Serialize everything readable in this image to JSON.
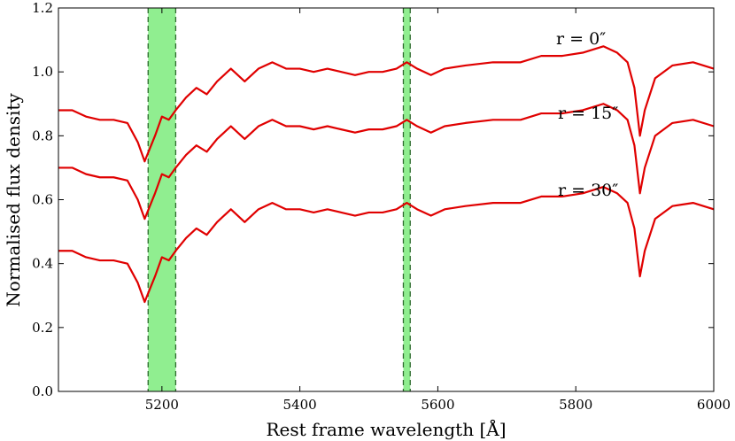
{
  "chart_data": {
    "type": "line",
    "xlabel": "Rest frame wavelength [Å]",
    "ylabel": "Normalised flux density",
    "xlim": [
      5050,
      6000
    ],
    "ylim": [
      0.0,
      1.2
    ],
    "xticks": [
      "5200",
      "5400",
      "5600",
      "5800",
      "6000"
    ],
    "yticks": [
      "0.0",
      "0.2",
      "0.4",
      "0.6",
      "0.8",
      "1.0",
      "1.2"
    ],
    "grid": false,
    "colors": {
      "observed": "#000000",
      "model": "#e00000",
      "band_fill": "#90ee90",
      "band_edge": "#2e6b2e"
    },
    "shaded_bands": [
      {
        "x0": 5180,
        "x1": 5220
      },
      {
        "x0": 5550,
        "x1": 5560
      }
    ],
    "annotations": [
      "r = 0″",
      "r = 15″",
      "r = 30″"
    ],
    "series_points": [
      [
        5050,
        0.88
      ],
      [
        5070,
        0.88
      ],
      [
        5090,
        0.86
      ],
      [
        5110,
        0.85
      ],
      [
        5130,
        0.85
      ],
      [
        5150,
        0.84
      ],
      [
        5165,
        0.78
      ],
      [
        5175,
        0.72
      ],
      [
        5190,
        0.8
      ],
      [
        5200,
        0.86
      ],
      [
        5210,
        0.85
      ],
      [
        5220,
        0.88
      ],
      [
        5235,
        0.92
      ],
      [
        5250,
        0.95
      ],
      [
        5265,
        0.93
      ],
      [
        5280,
        0.97
      ],
      [
        5300,
        1.01
      ],
      [
        5320,
        0.97
      ],
      [
        5340,
        1.01
      ],
      [
        5360,
        1.03
      ],
      [
        5380,
        1.01
      ],
      [
        5400,
        1.01
      ],
      [
        5420,
        1.0
      ],
      [
        5440,
        1.01
      ],
      [
        5460,
        1.0
      ],
      [
        5480,
        0.99
      ],
      [
        5500,
        1.0
      ],
      [
        5520,
        1.0
      ],
      [
        5540,
        1.01
      ],
      [
        5555,
        1.03
      ],
      [
        5570,
        1.01
      ],
      [
        5590,
        0.99
      ],
      [
        5610,
        1.01
      ],
      [
        5640,
        1.02
      ],
      [
        5680,
        1.03
      ],
      [
        5720,
        1.03
      ],
      [
        5750,
        1.05
      ],
      [
        5780,
        1.05
      ],
      [
        5810,
        1.06
      ],
      [
        5840,
        1.08
      ],
      [
        5860,
        1.06
      ],
      [
        5875,
        1.03
      ],
      [
        5885,
        0.95
      ],
      [
        5893,
        0.8
      ],
      [
        5900,
        0.88
      ],
      [
        5915,
        0.98
      ],
      [
        5940,
        1.02
      ],
      [
        5970,
        1.03
      ],
      [
        6000,
        1.01
      ]
    ],
    "series": [
      {
        "values_ref": "observed",
        "offset": 0.0
      },
      {
        "values_ref": "model",
        "offset": -0.18
      },
      {
        "values_ref": "model",
        "offset": -0.44
      }
    ]
  }
}
